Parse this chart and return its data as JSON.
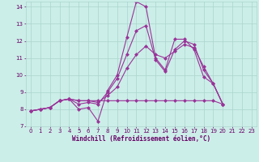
{
  "background_color": "#cceee8",
  "grid_color": "#aad4ce",
  "line_color": "#993399",
  "marker": "D",
  "marker_size": 2.5,
  "xlabel": "Windchill (Refroidissement éolien,°C)",
  "xlabel_color": "#660066",
  "tick_color": "#660066",
  "xlim": [
    -0.5,
    23.5
  ],
  "ylim": [
    7,
    14.3
  ],
  "xticks": [
    0,
    1,
    2,
    3,
    4,
    5,
    6,
    7,
    8,
    9,
    10,
    11,
    12,
    13,
    14,
    15,
    16,
    17,
    18,
    19,
    20,
    21,
    22,
    23
  ],
  "yticks": [
    7,
    8,
    9,
    10,
    11,
    12,
    13,
    14
  ],
  "series": [
    {
      "x": [
        0,
        1,
        2,
        3,
        4,
        5,
        6,
        7,
        8,
        9,
        10,
        11,
        12,
        13,
        14,
        15,
        16,
        17,
        18,
        19,
        20
      ],
      "y": [
        7.9,
        8.0,
        8.1,
        8.5,
        8.6,
        8.0,
        8.1,
        7.3,
        9.1,
        10.0,
        12.2,
        14.3,
        14.0,
        11.0,
        10.3,
        12.1,
        12.1,
        11.5,
        9.9,
        9.5,
        8.3
      ]
    },
    {
      "x": [
        0,
        1,
        2,
        3,
        4,
        5,
        6,
        7,
        8,
        9,
        10,
        11,
        12,
        13,
        14,
        15,
        16,
        17,
        18,
        19,
        20
      ],
      "y": [
        7.9,
        8.0,
        8.1,
        8.5,
        8.6,
        8.5,
        8.5,
        8.5,
        8.5,
        8.5,
        8.5,
        8.5,
        8.5,
        8.5,
        8.5,
        8.5,
        8.5,
        8.5,
        8.5,
        8.5,
        8.3
      ]
    },
    {
      "x": [
        0,
        1,
        2,
        3,
        4,
        5,
        6,
        7,
        8,
        9,
        10,
        11,
        12,
        13,
        14,
        15,
        16,
        17,
        18,
        19,
        20
      ],
      "y": [
        7.9,
        8.0,
        8.1,
        8.5,
        8.6,
        8.5,
        8.5,
        8.4,
        8.8,
        9.3,
        10.4,
        11.2,
        11.7,
        11.2,
        11.0,
        11.4,
        11.8,
        11.6,
        10.5,
        9.5,
        8.3
      ]
    },
    {
      "x": [
        0,
        1,
        2,
        3,
        4,
        5,
        6,
        7,
        8,
        9,
        10,
        11,
        12,
        13,
        14,
        15,
        16,
        17,
        18,
        19,
        20
      ],
      "y": [
        7.9,
        8.0,
        8.1,
        8.5,
        8.6,
        8.3,
        8.4,
        8.3,
        9.0,
        9.8,
        11.2,
        12.6,
        12.9,
        10.9,
        10.2,
        11.5,
        12.0,
        11.8,
        10.3,
        9.5,
        8.3
      ]
    }
  ],
  "figsize": [
    3.2,
    2.0
  ],
  "dpi": 100
}
